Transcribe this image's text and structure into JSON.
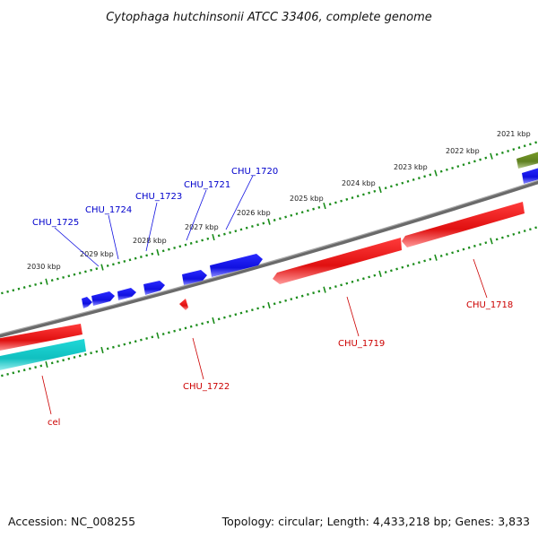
{
  "title": "Cytophaga hutchinsonii ATCC 33406, complete genome",
  "footer": {
    "accession": "Accession: NC_008255",
    "summary": "Topology: circular; Length: 4,433,218 bp; Genes: 3,833"
  },
  "colors": {
    "backbone": "#808080",
    "tick_ring": "#1a8c1a",
    "forward_gene": "#1010e0",
    "reverse_gene": "#e01010",
    "other_gene_cyan": "#10c8c8",
    "other_gene_olive": "#6b8e23",
    "label_forward": "#0000cc",
    "label_reverse": "#cc0000"
  },
  "kbp_ticks": [
    {
      "label": "2021 kbp"
    },
    {
      "label": "2022 kbp"
    },
    {
      "label": "2023 kbp"
    },
    {
      "label": "2024 kbp"
    },
    {
      "label": "2025 kbp"
    },
    {
      "label": "2026 kbp"
    },
    {
      "label": "2027 kbp"
    },
    {
      "label": "2028 kbp"
    },
    {
      "label": "2029 kbp"
    },
    {
      "label": "2030 kbp"
    }
  ],
  "genes": {
    "forward": [
      "CHU_1720",
      "CHU_1721",
      "CHU_1723",
      "CHU_1724",
      "CHU_1725"
    ],
    "reverse": [
      "CHU_1718",
      "CHU_1719",
      "CHU_1722",
      "cel"
    ]
  }
}
